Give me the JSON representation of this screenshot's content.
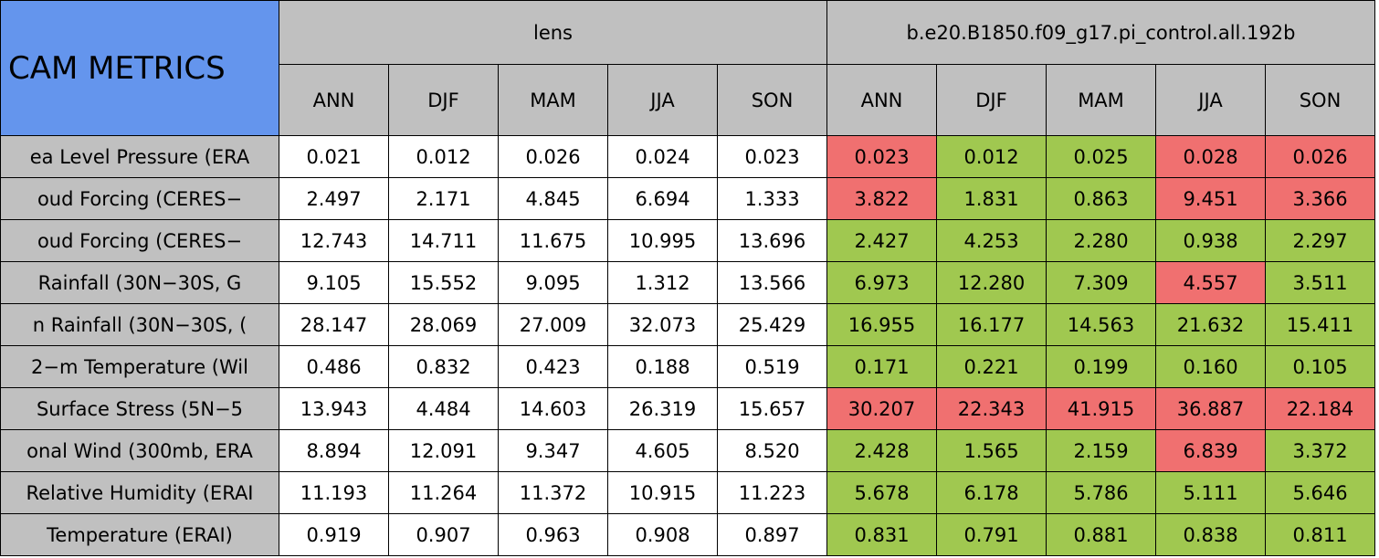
{
  "header": {
    "title": "CAM METRICS",
    "groups": [
      "lens",
      "b.e20.B1850.f09_g17.pi_control.all.192b"
    ],
    "seasons": [
      [
        "ANN",
        "DJF",
        "MAM",
        "JJA",
        "SON"
      ],
      [
        "ANN",
        "DJF",
        "MAM",
        "JJA",
        "SON"
      ]
    ]
  },
  "table": {
    "rows": [
      {
        "label": "ea Level Pressure (ERA",
        "values": [
          "0.021",
          "0.012",
          "0.026",
          "0.024",
          "0.023",
          "0.023",
          "0.012",
          "0.025",
          "0.028",
          "0.026"
        ],
        "colors": [
          "#ffffff",
          "#ffffff",
          "#ffffff",
          "#ffffff",
          "#ffffff",
          "#f07070",
          "#a0c850",
          "#a0c850",
          "#f07070",
          "#f07070"
        ]
      },
      {
        "label": "oud Forcing (CERES−",
        "values": [
          "2.497",
          "2.171",
          "4.845",
          "6.694",
          "1.333",
          "3.822",
          "1.831",
          "0.863",
          "9.451",
          "3.366"
        ],
        "colors": [
          "#ffffff",
          "#ffffff",
          "#ffffff",
          "#ffffff",
          "#ffffff",
          "#f07070",
          "#a0c850",
          "#a0c850",
          "#f07070",
          "#f07070"
        ]
      },
      {
        "label": "oud Forcing (CERES−",
        "values": [
          "12.743",
          "14.711",
          "11.675",
          "10.995",
          "13.696",
          "2.427",
          "4.253",
          "2.280",
          "0.938",
          "2.297"
        ],
        "colors": [
          "#ffffff",
          "#ffffff",
          "#ffffff",
          "#ffffff",
          "#ffffff",
          "#a0c850",
          "#a0c850",
          "#a0c850",
          "#a0c850",
          "#a0c850"
        ]
      },
      {
        "label": "Rainfall (30N−30S, G",
        "values": [
          "9.105",
          "15.552",
          "9.095",
          "1.312",
          "13.566",
          "6.973",
          "12.280",
          "7.309",
          "4.557",
          "3.511"
        ],
        "colors": [
          "#ffffff",
          "#ffffff",
          "#ffffff",
          "#ffffff",
          "#ffffff",
          "#a0c850",
          "#a0c850",
          "#a0c850",
          "#f07070",
          "#a0c850"
        ]
      },
      {
        "label": "n Rainfall (30N−30S, (",
        "values": [
          "28.147",
          "28.069",
          "27.009",
          "32.073",
          "25.429",
          "16.955",
          "16.177",
          "14.563",
          "21.632",
          "15.411"
        ],
        "colors": [
          "#ffffff",
          "#ffffff",
          "#ffffff",
          "#ffffff",
          "#ffffff",
          "#a0c850",
          "#a0c850",
          "#a0c850",
          "#a0c850",
          "#a0c850"
        ]
      },
      {
        "label": "2−m Temperature (Wil",
        "values": [
          "0.486",
          "0.832",
          "0.423",
          "0.188",
          "0.519",
          "0.171",
          "0.221",
          "0.199",
          "0.160",
          "0.105"
        ],
        "colors": [
          "#ffffff",
          "#ffffff",
          "#ffffff",
          "#ffffff",
          "#ffffff",
          "#a0c850",
          "#a0c850",
          "#a0c850",
          "#a0c850",
          "#a0c850"
        ]
      },
      {
        "label": "Surface Stress (5N−5",
        "values": [
          "13.943",
          "4.484",
          "14.603",
          "26.319",
          "15.657",
          "30.207",
          "22.343",
          "41.915",
          "36.887",
          "22.184"
        ],
        "colors": [
          "#ffffff",
          "#ffffff",
          "#ffffff",
          "#ffffff",
          "#ffffff",
          "#f07070",
          "#f07070",
          "#f07070",
          "#f07070",
          "#f07070"
        ]
      },
      {
        "label": "onal Wind (300mb, ERA",
        "values": [
          "8.894",
          "12.091",
          "9.347",
          "4.605",
          "8.520",
          "2.428",
          "1.565",
          "2.159",
          "6.839",
          "3.372"
        ],
        "colors": [
          "#ffffff",
          "#ffffff",
          "#ffffff",
          "#ffffff",
          "#ffffff",
          "#a0c850",
          "#a0c850",
          "#a0c850",
          "#f07070",
          "#a0c850"
        ]
      },
      {
        "label": "Relative Humidity (ERAI",
        "values": [
          "11.193",
          "11.264",
          "11.372",
          "10.915",
          "11.223",
          "5.678",
          "6.178",
          "5.786",
          "5.111",
          "5.646"
        ],
        "colors": [
          "#ffffff",
          "#ffffff",
          "#ffffff",
          "#ffffff",
          "#ffffff",
          "#a0c850",
          "#a0c850",
          "#a0c850",
          "#a0c850",
          "#a0c850"
        ]
      },
      {
        "label": "Temperature (ERAI)",
        "values": [
          "0.919",
          "0.907",
          "0.963",
          "0.908",
          "0.897",
          "0.831",
          "0.791",
          "0.881",
          "0.838",
          "0.811"
        ],
        "colors": [
          "#ffffff",
          "#ffffff",
          "#ffffff",
          "#ffffff",
          "#ffffff",
          "#a0c850",
          "#a0c850",
          "#a0c850",
          "#a0c850",
          "#a0c850"
        ]
      }
    ]
  }
}
